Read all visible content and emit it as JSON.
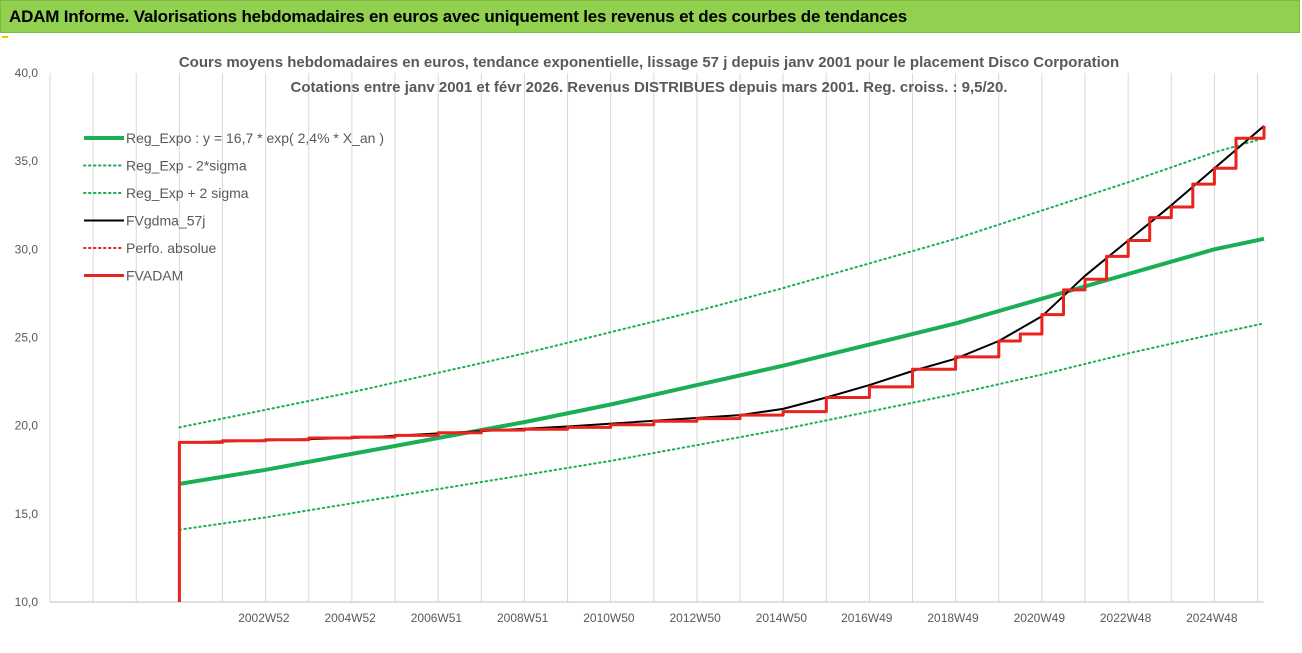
{
  "header": {
    "title": "ADAM Informe. Valorisations hebdomadaires en euros avec uniquement les revenus et des courbes de tendances"
  },
  "colors": {
    "header_bg": "#92d050",
    "reg_expo": "#1aaf54",
    "bands": "#1aaf54",
    "fvgdma": "#000000",
    "perf_abs": "#e8241c",
    "fvadam": "#e8241c",
    "gridline": "#d9d9d9"
  },
  "chart_data": {
    "type": "line",
    "title": "Cours moyens hebdomadaires en euros, tendance exponentielle, lissage 57 j depuis janv 2001 pour le placement Disco Corporation",
    "subtitle": "Cotations entre janv 2001 et févr 2026. Revenus DISTRIBUES depuis mars 2001. Reg. croiss. : 9,5/20.",
    "ylim": [
      10,
      40
    ],
    "y_ticks": [
      "10,0",
      "15,0",
      "20,0",
      "25,0",
      "30,0",
      "35,0",
      "40,0"
    ],
    "x_ticks": [
      "2002W52",
      "2004W52",
      "2006W51",
      "2008W51",
      "2010W50",
      "2012W50",
      "2014W50",
      "2016W49",
      "2018W49",
      "2020W49",
      "2022W48",
      "2024W48"
    ],
    "x_tick_years": [
      2002.96,
      2004.96,
      2006.96,
      2008.96,
      2010.96,
      2012.96,
      2014.96,
      2016.94,
      2018.94,
      2020.94,
      2022.94,
      2024.94
    ],
    "xlim": [
      1998.0,
      2026.15
    ],
    "grid": "vertical",
    "legend_position": "top-left",
    "series": [
      {
        "name": "Reg_Expo : y = 16,7 * exp( 2,4% * X_an )",
        "style": "solid-thick",
        "x": [
          2001.0,
          2003.0,
          2005.0,
          2007.0,
          2009.0,
          2011.0,
          2013.0,
          2015.0,
          2017.0,
          2019.0,
          2021.0,
          2023.0,
          2025.0,
          2026.15
        ],
        "values": [
          16.7,
          17.5,
          18.4,
          19.3,
          20.2,
          21.2,
          22.3,
          23.4,
          24.6,
          25.8,
          27.2,
          28.6,
          30.0,
          30.6
        ]
      },
      {
        "name": "Reg_Exp - 2*sigma",
        "style": "dotted",
        "x": [
          2001.0,
          2003.0,
          2005.0,
          2007.0,
          2009.0,
          2011.0,
          2013.0,
          2015.0,
          2017.0,
          2019.0,
          2021.0,
          2023.0,
          2025.0,
          2026.15
        ],
        "values": [
          14.1,
          14.8,
          15.6,
          16.4,
          17.2,
          18.0,
          18.9,
          19.8,
          20.8,
          21.8,
          22.9,
          24.1,
          25.2,
          25.8
        ]
      },
      {
        "name": "Reg_Exp + 2 sigma",
        "style": "dotted",
        "x": [
          2001.0,
          2003.0,
          2005.0,
          2007.0,
          2009.0,
          2011.0,
          2013.0,
          2015.0,
          2017.0,
          2019.0,
          2021.0,
          2023.0,
          2025.0,
          2026.15
        ],
        "values": [
          19.9,
          20.9,
          21.9,
          23.0,
          24.1,
          25.3,
          26.5,
          27.8,
          29.2,
          30.6,
          32.2,
          33.8,
          35.5,
          36.3
        ]
      },
      {
        "name": "FVgdma_57j",
        "style": "solid-thin",
        "x": [
          2001.2,
          2005.0,
          2010.0,
          2014.0,
          2015.0,
          2016.0,
          2017.0,
          2018.0,
          2019.0,
          2020.0,
          2021.0,
          2022.0,
          2023.0,
          2024.0,
          2025.0,
          2026.15
        ],
        "values": [
          19.05,
          19.3,
          19.95,
          20.6,
          20.95,
          21.6,
          22.3,
          23.1,
          23.8,
          24.8,
          26.2,
          28.5,
          30.5,
          32.5,
          34.6,
          37.0
        ]
      },
      {
        "name": "Perfo. absolue",
        "style": "dotted",
        "x": [],
        "values": []
      },
      {
        "name": "FVADAM",
        "style": "solid-thick",
        "x": [
          2001.0,
          2001.0,
          2001.0,
          2002.0,
          2003.0,
          2004.0,
          2005.0,
          2006.0,
          2007.0,
          2008.0,
          2009.0,
          2010.0,
          2011.0,
          2012.0,
          2013.0,
          2014.0,
          2015.0,
          2016.0,
          2017.0,
          2018.0,
          2019.0,
          2020.0,
          2020.5,
          2021.0,
          2021.5,
          2022.0,
          2022.5,
          2023.0,
          2023.5,
          2024.0,
          2024.5,
          2025.0,
          2025.5,
          2026.15
        ],
        "values": [
          10.0,
          19.0,
          19.05,
          19.15,
          19.2,
          19.3,
          19.35,
          19.45,
          19.6,
          19.75,
          19.8,
          19.9,
          20.05,
          20.25,
          20.4,
          20.6,
          20.8,
          21.6,
          22.2,
          23.2,
          23.9,
          24.8,
          25.2,
          26.3,
          27.7,
          28.3,
          29.6,
          30.5,
          31.8,
          32.4,
          33.7,
          34.6,
          36.3,
          37.0
        ]
      }
    ]
  }
}
